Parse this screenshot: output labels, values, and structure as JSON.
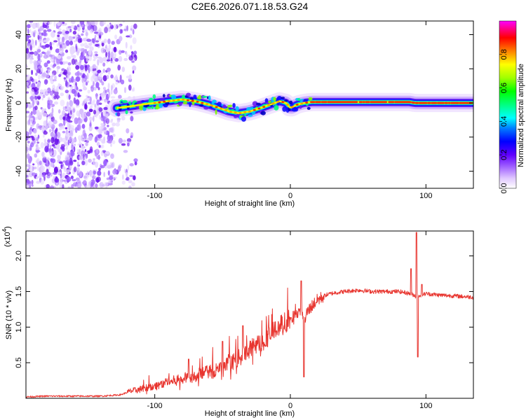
{
  "chart_data": [
    {
      "type": "heatmap",
      "title": "C2E6.2026.071.18.53.G24",
      "xlabel": "Height of straight line (km)",
      "ylabel": "Frequency (Hz)",
      "xlim": [
        -195,
        135
      ],
      "ylim": [
        -50,
        48
      ],
      "xticks": [
        -100,
        0,
        100
      ],
      "yticks": [
        -40,
        -20,
        0,
        20,
        40
      ],
      "colorbar": {
        "label": "Normalized spectral amplitude",
        "range": [
          0,
          1
        ],
        "ticks": [
          "0.0",
          "0.2",
          "0.4",
          "0.6",
          "0.8"
        ],
        "tick_values": [
          0.0,
          0.2,
          0.4,
          0.6,
          0.8
        ],
        "colors": [
          "#ffffff",
          "#e0c8ff",
          "#a060ff",
          "#7000ff",
          "#0000ff",
          "#0080ff",
          "#00ffff",
          "#00ff80",
          "#00ff00",
          "#80ff00",
          "#ffff00",
          "#ff8000",
          "#ff0000",
          "#ff00ff"
        ]
      },
      "ridge": {
        "x": [
          -128,
          -118,
          -110,
          -100,
          -90,
          -80,
          -70,
          -60,
          -52,
          -45,
          -38,
          -30,
          -22,
          -15,
          -8,
          -3,
          0,
          5,
          10,
          15,
          30,
          50,
          70,
          88,
          92,
          100,
          120,
          135
        ],
        "y": [
          -3,
          -2,
          -1,
          0,
          1,
          2,
          1,
          -1,
          -3,
          -5,
          -6,
          -5,
          -3,
          -1,
          1,
          0,
          -3,
          -1,
          0,
          0.5,
          0.5,
          0.5,
          0.5,
          0.5,
          0,
          0,
          0,
          0
        ]
      },
      "noise_region_x": [
        -195,
        -120
      ]
    },
    {
      "type": "line",
      "xlabel": "Height of straight line (km)",
      "ylabel": "SNR (10 * v/v)",
      "exponent_label": "(x10",
      "exponent_power": "4",
      "exponent_close": ")",
      "xlim": [
        -195,
        135
      ],
      "ylim": [
        0.0,
        2.35
      ],
      "xticks": [
        -100,
        0,
        100
      ],
      "yticks": [
        0.5,
        1.0,
        1.5,
        2.0
      ],
      "yticklabels": [
        "0.5",
        "1.0",
        "1.5",
        "2.0"
      ],
      "color": "#e8352f",
      "series": [
        {
          "name": "SNR",
          "x": [
            -195,
            -180,
            -160,
            -140,
            -125,
            -118,
            -112,
            -105,
            -98,
            -92,
            -85,
            -78,
            -70,
            -62,
            -55,
            -48,
            -42,
            -35,
            -28,
            -20,
            -12,
            -5,
            0,
            4,
            8,
            10,
            12,
            16,
            20,
            26,
            32,
            40,
            50,
            60,
            70,
            80,
            86,
            90,
            92,
            93,
            94,
            96,
            100,
            110,
            120,
            135
          ],
          "y": [
            0.02,
            0.03,
            0.03,
            0.03,
            0.05,
            0.1,
            0.12,
            0.15,
            0.18,
            0.22,
            0.25,
            0.28,
            0.32,
            0.36,
            0.4,
            0.45,
            0.52,
            0.6,
            0.72,
            0.8,
            0.95,
            1.05,
            1.1,
            1.2,
            1.25,
            1.0,
            1.2,
            1.3,
            1.38,
            1.45,
            1.48,
            1.5,
            1.52,
            1.5,
            1.5,
            1.5,
            1.48,
            1.46,
            1.44,
            1.42,
            1.44,
            1.45,
            1.47,
            1.45,
            1.44,
            1.42
          ]
        }
      ],
      "spikes": [
        {
          "x": 8,
          "y": 1.65
        },
        {
          "x": 10,
          "y": 0.3
        },
        {
          "x": -35,
          "y": 1.02
        },
        {
          "x": -75,
          "y": 0.55
        },
        {
          "x": -50,
          "y": 0.8
        },
        {
          "x": 93,
          "y": 2.33
        },
        {
          "x": 94,
          "y": 0.58
        },
        {
          "x": 89,
          "y": 1.82
        },
        {
          "x": 97,
          "y": 1.6
        }
      ]
    }
  ]
}
